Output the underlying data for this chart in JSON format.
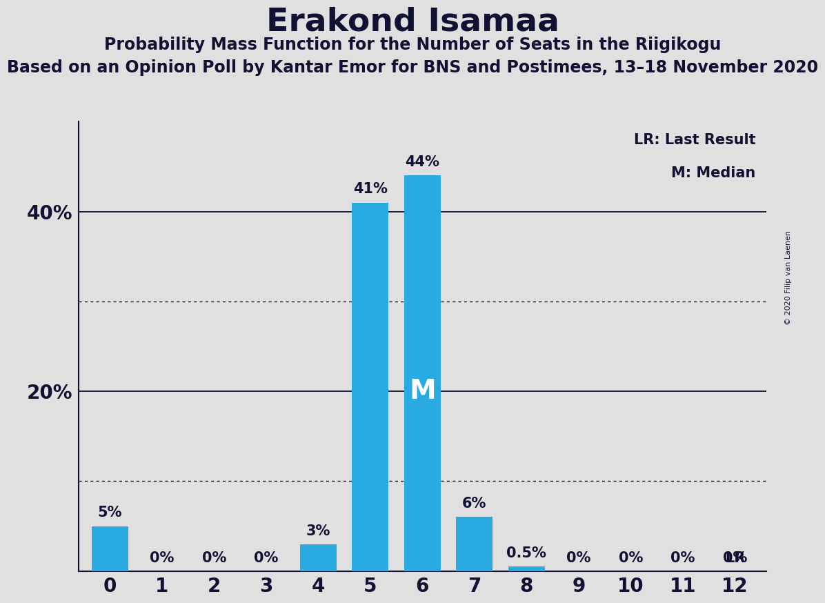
{
  "title": "Erakond Isamaa",
  "subtitle1": "Probability Mass Function for the Number of Seats in the Riigikogu",
  "subtitle2": "Based on an Opinion Poll by Kantar Emor for BNS and Postimees, 13–18 November 2020",
  "copyright": "© 2020 Filip van Laenen",
  "categories": [
    0,
    1,
    2,
    3,
    4,
    5,
    6,
    7,
    8,
    9,
    10,
    11,
    12
  ],
  "values": [
    5,
    0,
    0,
    0,
    3,
    41,
    44,
    6,
    0.5,
    0,
    0,
    0,
    0
  ],
  "bar_color": "#29ABE2",
  "background_color": "#E0E0E0",
  "ylim": [
    0,
    50
  ],
  "yticks": [
    20,
    40
  ],
  "ytick_labels": [
    "20%",
    "40%"
  ],
  "solid_gridlines": [
    20,
    40
  ],
  "dotted_gridlines": [
    10,
    30
  ],
  "legend_lr": "LR: Last Result",
  "legend_m": "M: Median",
  "median_bar": 6,
  "lr_bar": 12,
  "median_label": "M",
  "lr_label": "LR",
  "label_fontsize": 15,
  "tick_fontsize": 20,
  "title_fontsize": 34,
  "subtitle1_fontsize": 17,
  "subtitle2_fontsize": 17,
  "legend_fontsize": 15,
  "copyright_fontsize": 8
}
